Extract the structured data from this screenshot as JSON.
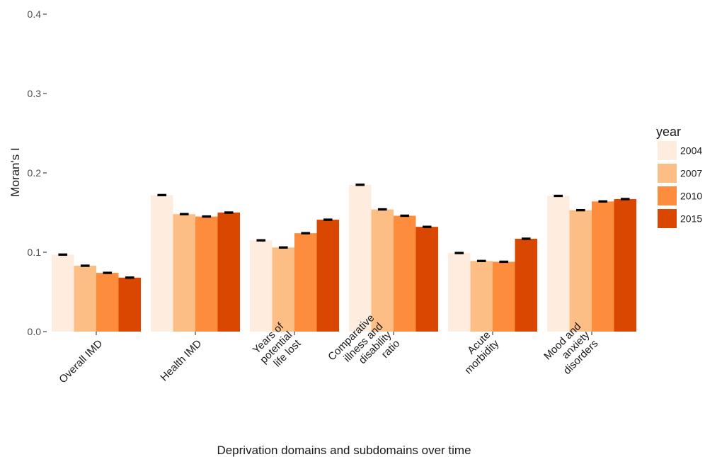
{
  "chart_data": {
    "type": "bar",
    "title": "",
    "xlabel": "Deprivation domains and subdomains over time",
    "ylabel": "Moran's I",
    "ylim": [
      0,
      0.4
    ],
    "yticks": [
      "0.0",
      "0.1",
      "0.2",
      "0.3",
      "0.4"
    ],
    "ytick_values": [
      0,
      0.1,
      0.2,
      0.3,
      0.4
    ],
    "grid": false,
    "legend_position": "right",
    "legend_title": "year",
    "categories": [
      [
        "Overall IMD"
      ],
      [
        "Health IMD"
      ],
      [
        "Years of",
        "potential",
        "life lost"
      ],
      [
        "Comparative",
        "illness and",
        "disability",
        "ratio"
      ],
      [
        "Acute",
        "morbidity"
      ],
      [
        "Mood and",
        "anxiety",
        "disorders"
      ]
    ],
    "series": [
      {
        "name": "2004",
        "color": "#FEEDDE",
        "values": [
          0.097,
          0.172,
          0.115,
          0.185,
          0.099,
          0.171
        ],
        "errors": [
          0.0006,
          0.0006,
          0.0006,
          0.0006,
          0.0006,
          0.0006
        ]
      },
      {
        "name": "2007",
        "color": "#FDBE85",
        "values": [
          0.083,
          0.148,
          0.106,
          0.154,
          0.089,
          0.153
        ],
        "errors": [
          0.0006,
          0.0006,
          0.0006,
          0.0006,
          0.0006,
          0.0006
        ]
      },
      {
        "name": "2010",
        "color": "#FD8D3C",
        "values": [
          0.074,
          0.145,
          0.124,
          0.146,
          0.088,
          0.164
        ],
        "errors": [
          0.0006,
          0.0006,
          0.0006,
          0.0006,
          0.0006,
          0.0006
        ]
      },
      {
        "name": "2015",
        "color": "#D94701",
        "values": [
          0.068,
          0.15,
          0.141,
          0.132,
          0.117,
          0.167
        ],
        "errors": [
          0.0006,
          0.0006,
          0.0006,
          0.0006,
          0.0006,
          0.0006
        ]
      }
    ]
  }
}
